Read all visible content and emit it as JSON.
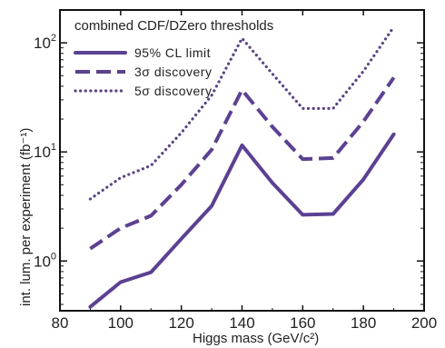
{
  "chart_data": {
    "type": "line",
    "title": "combined CDF/DZero thresholds",
    "xlabel": "Higgs mass (GeV/c²)",
    "ylabel": "int. lum. per experiment (fb⁻¹)",
    "xlim": [
      80,
      200
    ],
    "ylim": [
      0.35,
      200
    ],
    "yscale": "log",
    "x_ticks": [
      "80",
      "100",
      "120",
      "140",
      "160",
      "180",
      "200"
    ],
    "y_ticks": [
      {
        "base": "10",
        "exp": "0",
        "value": 1
      },
      {
        "base": "10",
        "exp": "1",
        "value": 10
      },
      {
        "base": "10",
        "exp": "2",
        "value": 100
      }
    ],
    "grid": false,
    "legend_position": "top-left",
    "line_color": "#5b3f9b",
    "series": [
      {
        "name": "95% CL limit",
        "style": "solid",
        "x": [
          90,
          100,
          110,
          120,
          130,
          140,
          150,
          160,
          170,
          180,
          190
        ],
        "y": [
          0.38,
          0.64,
          0.79,
          1.6,
          3.2,
          11.5,
          5.2,
          2.65,
          2.7,
          5.6,
          14.5
        ]
      },
      {
        "name": "3σ discovery",
        "style": "dashed",
        "x": [
          90,
          100,
          110,
          120,
          130,
          140,
          150,
          160,
          170,
          180,
          190
        ],
        "y": [
          1.3,
          2.0,
          2.6,
          5.0,
          10.5,
          37,
          17,
          8.6,
          8.8,
          19,
          48
        ]
      },
      {
        "name": "5σ discovery",
        "style": "dotted",
        "x": [
          90,
          100,
          110,
          120,
          130,
          140,
          150,
          160,
          170,
          180,
          190
        ],
        "y": [
          3.7,
          5.8,
          7.5,
          15,
          33,
          110,
          52,
          25,
          25,
          55,
          140
        ]
      }
    ]
  }
}
